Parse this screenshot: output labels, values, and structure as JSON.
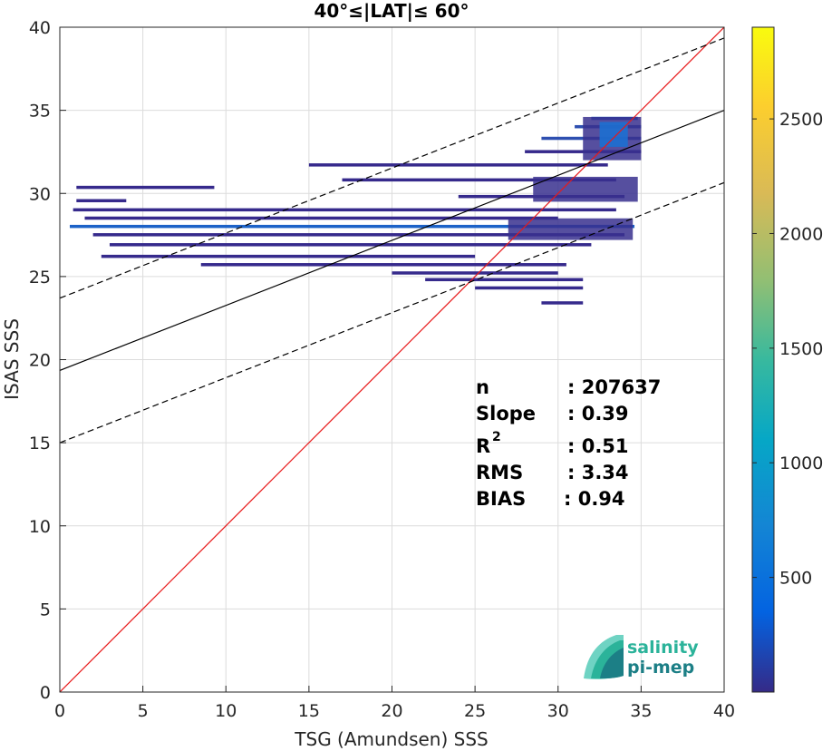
{
  "chart_data": {
    "type": "heatmap",
    "title": "40°≤|LAT|≤ 60°",
    "xlabel": "TSG (Amundsen) SSS",
    "ylabel": "ISAS SSS",
    "xlim": [
      0,
      40
    ],
    "ylim": [
      0,
      40
    ],
    "xticks": [
      0,
      5,
      10,
      15,
      20,
      25,
      30,
      35,
      40
    ],
    "yticks": [
      0,
      5,
      10,
      15,
      20,
      25,
      30,
      35,
      40
    ],
    "grid": true,
    "colorbar": {
      "min": 0,
      "max": 2900,
      "ticks": [
        500,
        1000,
        1500,
        2000,
        2500
      ],
      "colormap": "parula"
    },
    "lines": [
      {
        "name": "1:1",
        "type": "line",
        "points": [
          [
            0,
            0
          ],
          [
            40,
            40
          ]
        ],
        "color": "#e8191a",
        "style": "solid"
      },
      {
        "name": "regression",
        "type": "line",
        "points": [
          [
            0,
            19.35
          ],
          [
            40,
            35.0
          ]
        ],
        "color": "#000000",
        "style": "solid"
      },
      {
        "name": "upper",
        "type": "line",
        "points": [
          [
            0,
            23.7
          ],
          [
            40,
            39.35
          ]
        ],
        "color": "#000000",
        "style": "dashed"
      },
      {
        "name": "lower",
        "type": "line",
        "points": [
          [
            0,
            15.0
          ],
          [
            40,
            30.65
          ]
        ],
        "color": "#000000",
        "style": "dashed"
      }
    ],
    "density_streaks": [
      {
        "x0": 0.6,
        "x1": 34.6,
        "y": 28.0,
        "count": 700
      },
      {
        "x0": 1.0,
        "x1": 9.3,
        "y": 30.35,
        "count": 60
      },
      {
        "x0": 1.0,
        "x1": 4.0,
        "y": 29.55,
        "count": 40
      },
      {
        "x0": 0.8,
        "x1": 33.5,
        "y": 29.0,
        "count": 120
      },
      {
        "x0": 1.5,
        "x1": 30.0,
        "y": 28.5,
        "count": 150
      },
      {
        "x0": 2.0,
        "x1": 34.0,
        "y": 27.5,
        "count": 140
      },
      {
        "x0": 3.0,
        "x1": 32.0,
        "y": 26.9,
        "count": 90
      },
      {
        "x0": 2.5,
        "x1": 25.0,
        "y": 26.2,
        "count": 60
      },
      {
        "x0": 8.5,
        "x1": 30.5,
        "y": 25.7,
        "count": 70
      },
      {
        "x0": 20.0,
        "x1": 30.0,
        "y": 25.2,
        "count": 60
      },
      {
        "x0": 22.0,
        "x1": 31.5,
        "y": 24.8,
        "count": 50
      },
      {
        "x0": 25.0,
        "x1": 31.5,
        "y": 24.3,
        "count": 40
      },
      {
        "x0": 29.0,
        "x1": 31.5,
        "y": 23.4,
        "count": 30
      },
      {
        "x0": 15.0,
        "x1": 33.0,
        "y": 31.7,
        "count": 60
      },
      {
        "x0": 17.0,
        "x1": 33.5,
        "y": 30.8,
        "count": 60
      },
      {
        "x0": 24.0,
        "x1": 34.0,
        "y": 29.8,
        "count": 90
      },
      {
        "x0": 28.0,
        "x1": 35.0,
        "y": 32.5,
        "count": 120
      },
      {
        "x0": 29.0,
        "x1": 35.0,
        "y": 33.3,
        "count": 180
      },
      {
        "x0": 31.0,
        "x1": 35.0,
        "y": 34.0,
        "count": 250
      },
      {
        "x0": 32.0,
        "x1": 34.8,
        "y": 34.5,
        "count": 300
      }
    ],
    "stats": {
      "n": {
        "label": "n",
        "value": ": 207637"
      },
      "slope": {
        "label": "Slope",
        "value": ": 0.39"
      },
      "r2": {
        "label": "R",
        "sup": "2",
        "value": ": 0.51"
      },
      "rms": {
        "label": "RMS",
        "value": ": 3.34"
      },
      "bias": {
        "label": "BIAS",
        "value": ": 0.94"
      }
    }
  },
  "logo": {
    "line1": "salinity",
    "line2": "pi-mep",
    "colors": {
      "primary": "#2bb39a",
      "secondary": "#1c7f86"
    }
  }
}
